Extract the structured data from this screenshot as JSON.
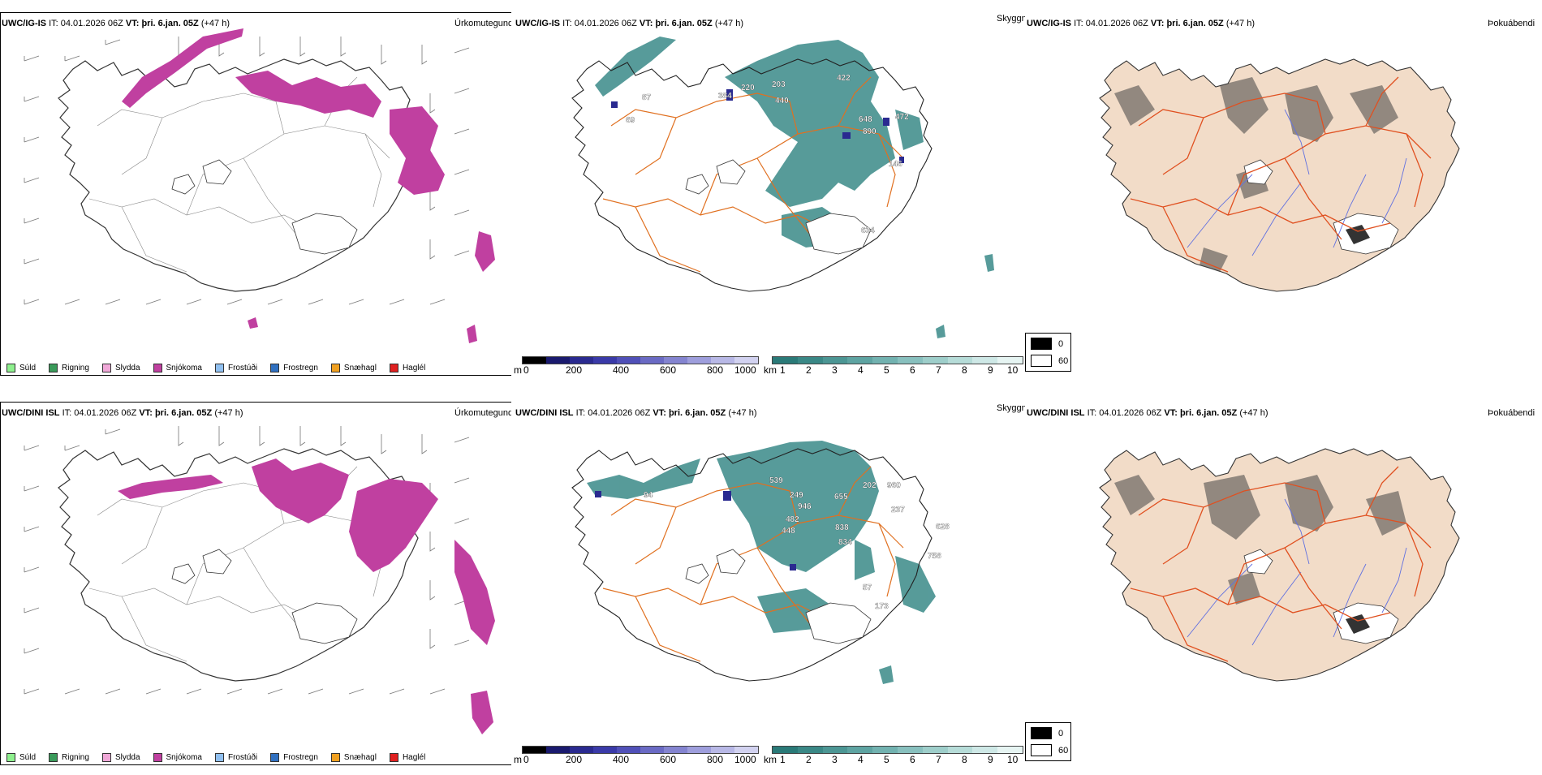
{
  "rows": [
    {
      "model": "UWC/IG-IS",
      "it_label": "IT:",
      "it_value": "04.01.2026 06Z",
      "vt_label": "VT:",
      "vt_value": "þri. 6.jan. 05Z",
      "lead": "(+47 h)",
      "labels_cloud": [
        "87",
        "384",
        "220",
        "203",
        "440",
        "422",
        "648",
        "890",
        "472",
        "146",
        "634",
        "69"
      ],
      "labels_cloud_colors": "white"
    },
    {
      "model": "UWC/DINI ISL",
      "it_label": "IT:",
      "it_value": "04.01.2026 06Z",
      "vt_label": "VT:",
      "vt_value": "þri. 6.jan. 05Z",
      "lead": "(+47 h)",
      "labels_cloud": [
        "94",
        "539",
        "249",
        "946",
        "482",
        "448",
        "655",
        "202",
        "960",
        "237",
        "628",
        "838",
        "834",
        "758",
        "57",
        "173"
      ],
      "labels_cloud_colors": "white"
    }
  ],
  "panel_titles": {
    "precip": "Úrkomutegund",
    "cloud": "Skyggni",
    "fog": "Þokuábendi"
  },
  "precip_legend": [
    {
      "label": "Súld",
      "color": "#8ef08e"
    },
    {
      "label": "Rigning",
      "color": "#3a9a5a"
    },
    {
      "label": "Slydda",
      "color": "#f0a8d8"
    },
    {
      "label": "Snjókoma",
      "color": "#c040a0"
    },
    {
      "label": "Frostúði",
      "color": "#90c0f0"
    },
    {
      "label": "Frostregn",
      "color": "#3070c0"
    },
    {
      "label": "Snæhagl",
      "color": "#f0a020"
    },
    {
      "label": "Haglél",
      "color": "#e02020"
    }
  ],
  "cloudbase_bar": {
    "unit": "m",
    "ticks": [
      "0",
      "200",
      "400",
      "600",
      "800",
      "1000"
    ],
    "colors": [
      "#000000",
      "#1a1a6e",
      "#2a2a90",
      "#3a3aa8",
      "#5050b8",
      "#6a6ac4",
      "#8484d0",
      "#9e9edc",
      "#b8b8e6",
      "#d2d2f0"
    ]
  },
  "visibility_bar": {
    "unit": "km",
    "ticks": [
      "1",
      "2",
      "3",
      "4",
      "5",
      "6",
      "7",
      "8",
      "9",
      "10"
    ],
    "colors": [
      "#2a7a78",
      "#3a8886",
      "#4c9694",
      "#5ea4a2",
      "#72b2b0",
      "#88c0be",
      "#9ececa",
      "#b6dcd8",
      "#cee8e6",
      "#e6f4f2"
    ]
  },
  "fog_legend": [
    {
      "label": "0",
      "color": "#000000"
    },
    {
      "label": "60",
      "color": "#ffffff"
    }
  ],
  "colors": {
    "snow": "#c040a0",
    "cloud": "#3a8a88",
    "roads": "#e07020",
    "rivers": "#6070e0",
    "land_fog": "#f2dcc8"
  }
}
